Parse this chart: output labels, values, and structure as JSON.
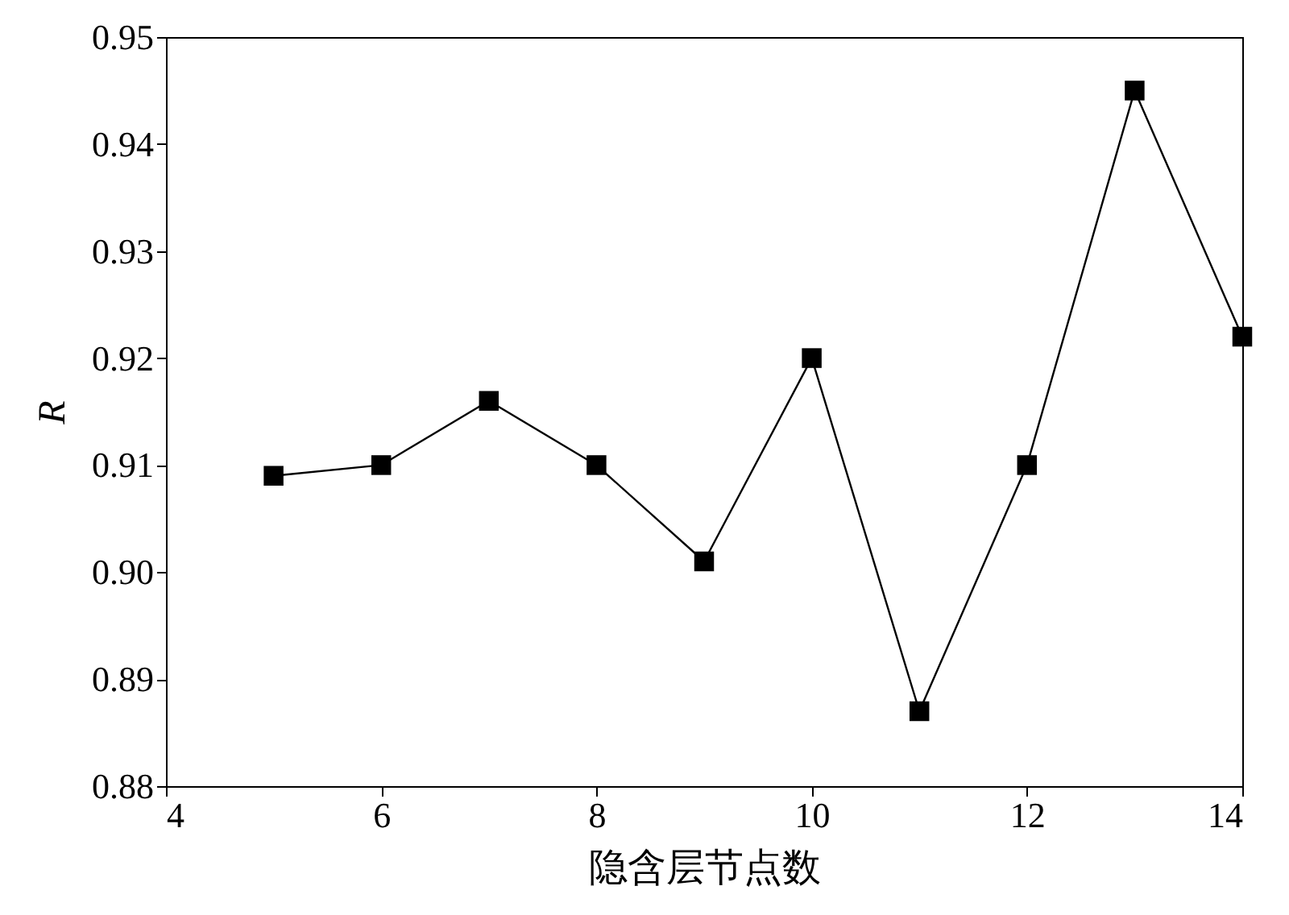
{
  "chart_data": {
    "type": "line",
    "xlabel": "隐含层节点数",
    "ylabel": "R",
    "x": [
      5,
      6,
      7,
      8,
      9,
      10,
      11,
      12,
      13,
      14
    ],
    "series": [
      {
        "color": "#000000",
        "values": [
          0.909,
          0.91,
          0.916,
          0.91,
          0.901,
          0.92,
          0.887,
          0.91,
          0.945,
          0.922
        ]
      }
    ],
    "xlim": [
      4,
      14
    ],
    "xticks": [
      4,
      6,
      8,
      10,
      12,
      14
    ],
    "ylim": [
      0.88,
      0.95
    ],
    "yticks": [
      {
        "value": 0.88,
        "label": "0.88"
      },
      {
        "value": 0.89,
        "label": "0.89"
      },
      {
        "value": 0.9,
        "label": "0.90"
      },
      {
        "value": 0.91,
        "label": "0.91"
      },
      {
        "value": 0.92,
        "label": "0.92"
      },
      {
        "value": 0.93,
        "label": "0.93"
      },
      {
        "value": 0.94,
        "label": "0.94"
      },
      {
        "value": 0.95,
        "label": "0.95"
      }
    ],
    "grid": false,
    "marker": "square",
    "line_style": "solid",
    "legend": false
  }
}
